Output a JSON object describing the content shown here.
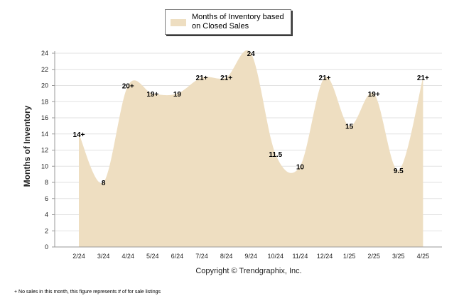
{
  "legend": {
    "label": "Months of Inventory based on Closed Sales"
  },
  "copyright": "Copyright © Trendgraphix, Inc.",
  "footnote": "+ No sales in this month, this figure represents # of for sale listings",
  "colors": {
    "fill": "#eedec1",
    "axis": "#999999",
    "grid": "#e2e2e2",
    "text": "#222222"
  },
  "chart_data": {
    "type": "area",
    "ylabel": "Months of Inventory",
    "xlabel": "",
    "ylim": [
      0,
      24
    ],
    "yticks": [
      0,
      2,
      4,
      6,
      8,
      10,
      12,
      14,
      16,
      18,
      20,
      22,
      24
    ],
    "grid": true,
    "legend_position": "top-center",
    "categories": [
      "2/24",
      "3/24",
      "4/24",
      "5/24",
      "6/24",
      "7/24",
      "8/24",
      "9/24",
      "10/24",
      "11/24",
      "12/24",
      "1/25",
      "2/25",
      "3/25",
      "4/25"
    ],
    "series": [
      {
        "name": "Months of Inventory based on Closed Sales",
        "values": [
          14,
          8,
          20,
          19,
          19,
          21,
          21,
          24,
          11.5,
          10,
          21,
          15,
          19,
          9.5,
          21
        ],
        "labels": [
          "14+",
          "8",
          "20+",
          "19+",
          "19",
          "21+",
          "21+",
          "24",
          "11.5",
          "10",
          "21+",
          "15",
          "19+",
          "9.5",
          "21+"
        ]
      }
    ]
  }
}
